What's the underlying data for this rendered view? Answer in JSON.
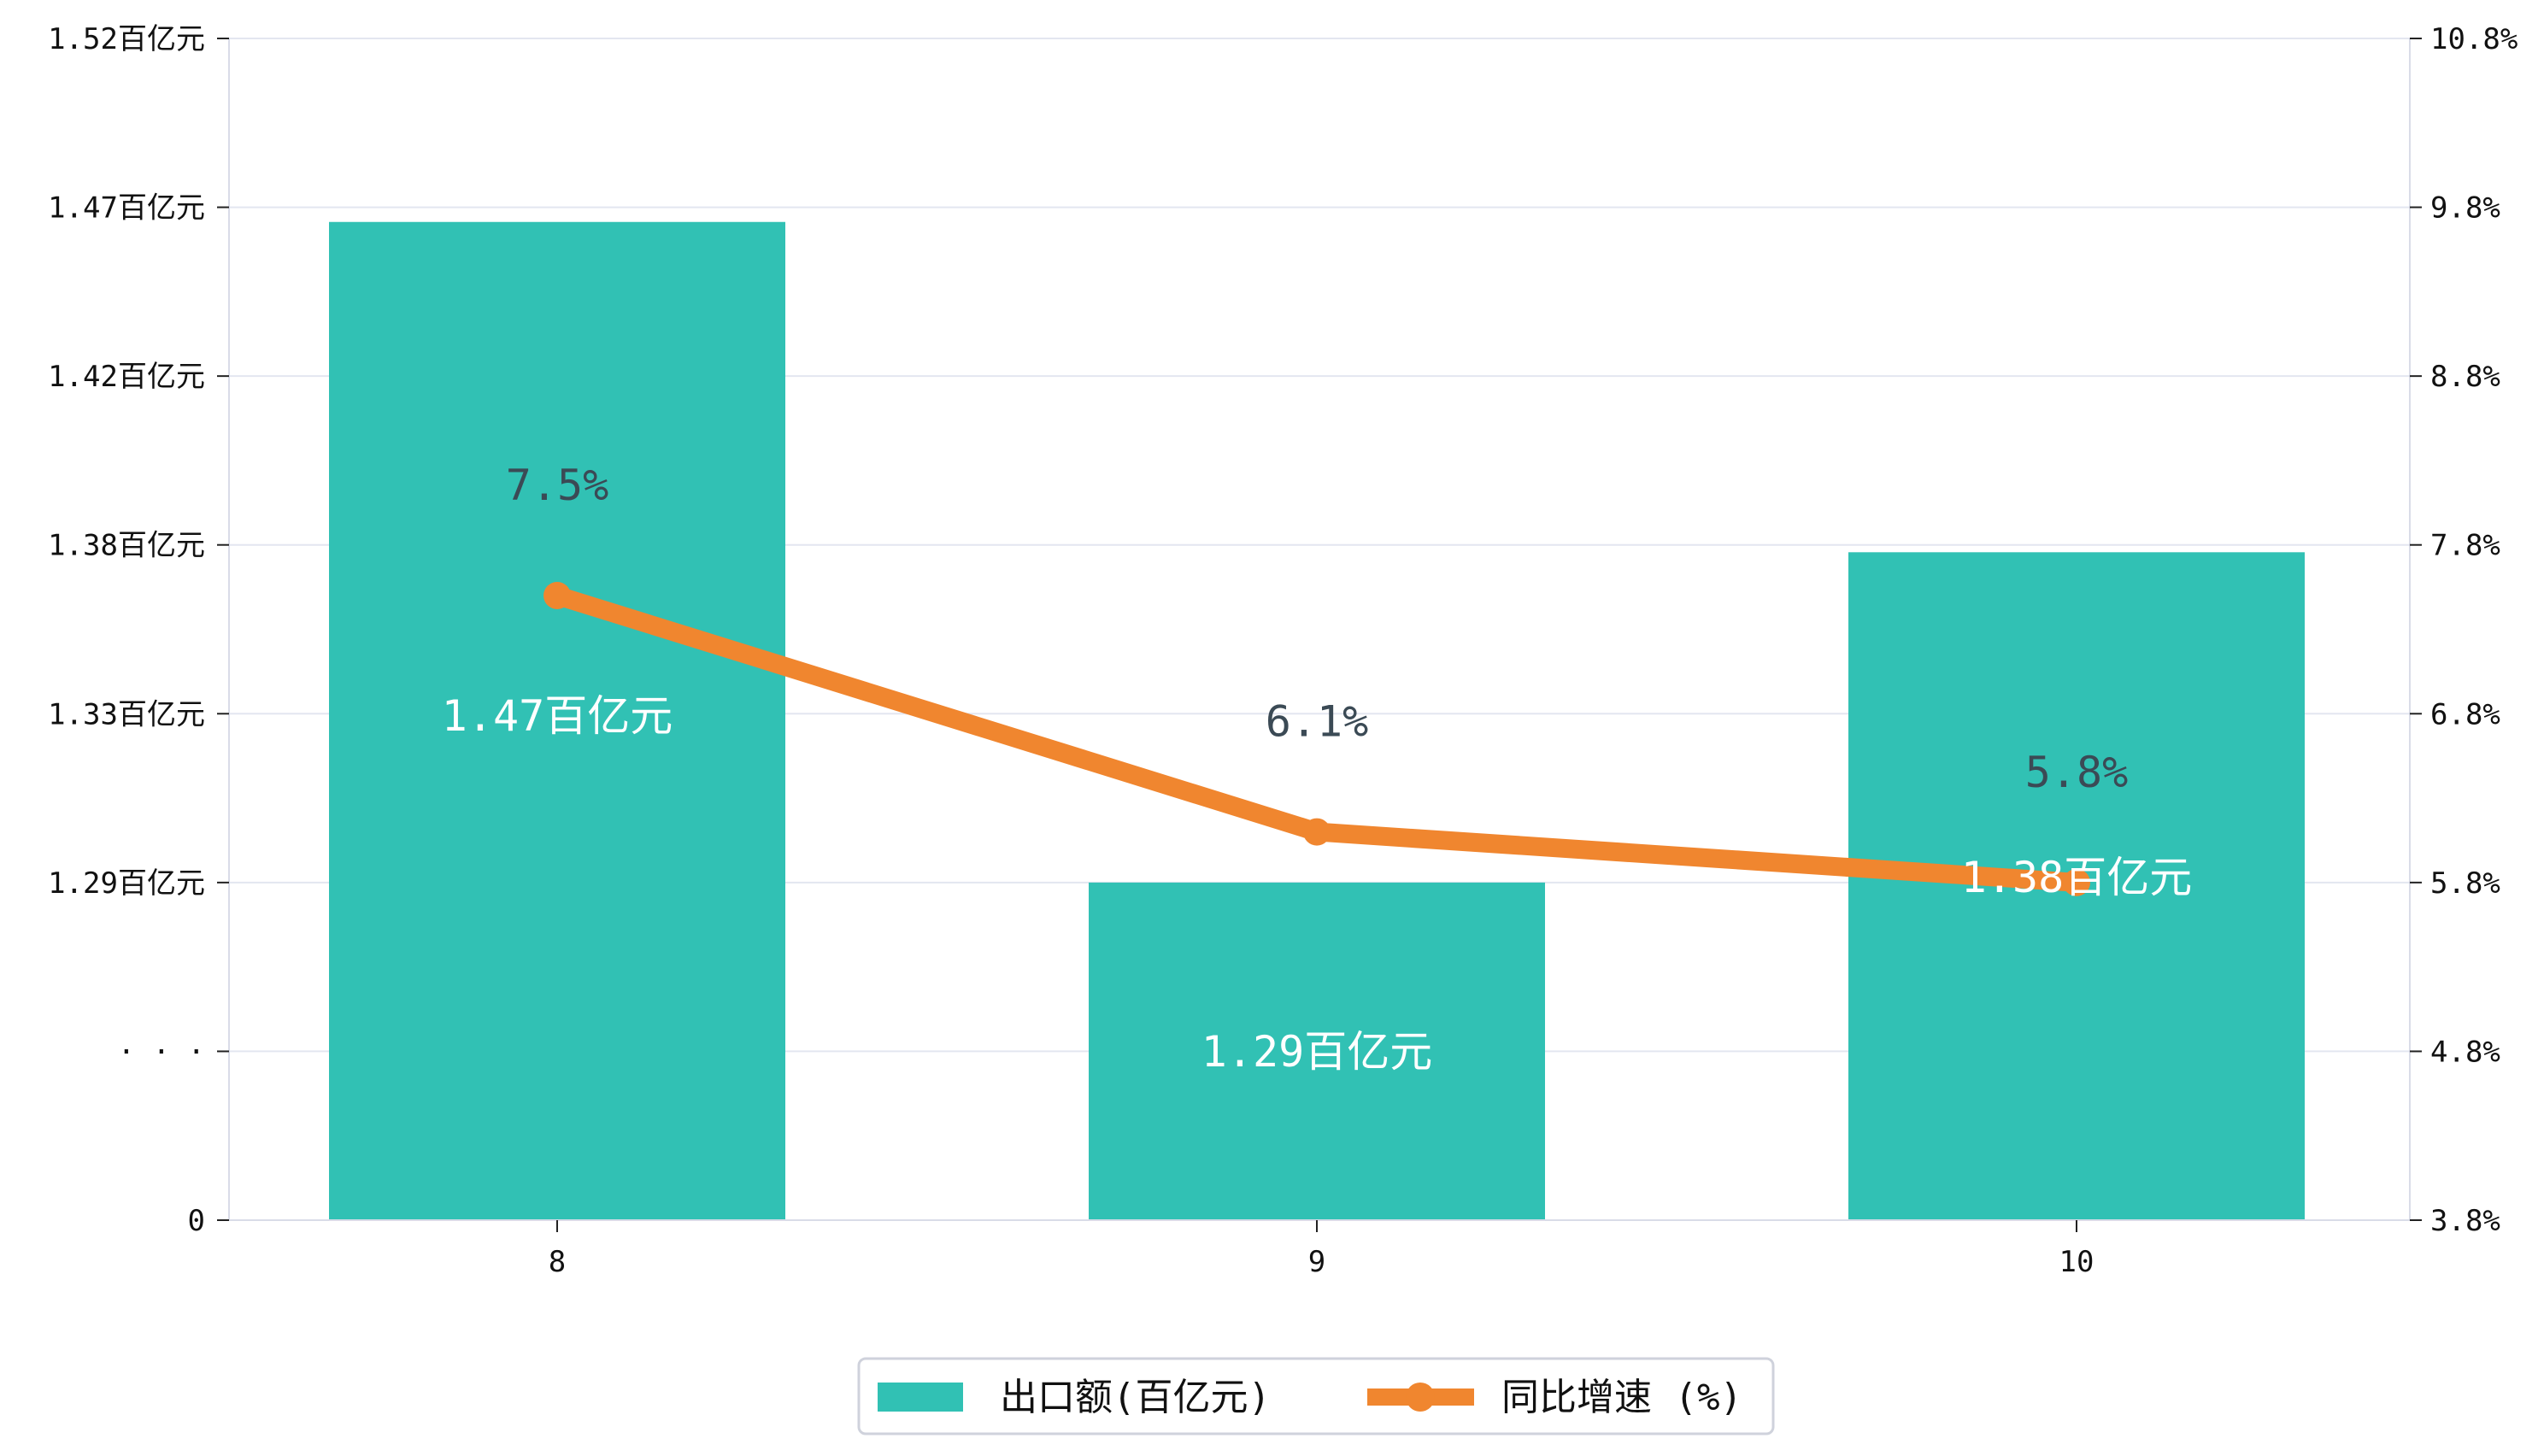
{
  "chart_data": {
    "type": "bar+line",
    "categories": [
      "8",
      "9",
      "10"
    ],
    "series": [
      {
        "name": "出口额(百亿元)",
        "kind": "bar",
        "axis": "left",
        "values": [
          1.47,
          1.29,
          1.38
        ],
        "labels": [
          "1.47百亿元",
          "1.29百亿元",
          "1.38百亿元"
        ]
      },
      {
        "name": "同比增速 (%)",
        "kind": "line",
        "axis": "right",
        "values": [
          7.5,
          6.1,
          5.8
        ],
        "labels": [
          "7.5%",
          "6.1%",
          "5.8%"
        ]
      }
    ],
    "left_axis": {
      "ticks": [
        "0",
        "· · ·",
        "1.29百亿元",
        "1.33百亿元",
        "1.38百亿元",
        "1.42百亿元",
        "1.47百亿元",
        "1.52百亿元"
      ],
      "broken": true,
      "ylim": [
        1.245,
        1.52
      ]
    },
    "right_axis": {
      "ticks": [
        "3.8%",
        "4.8%",
        "5.8%",
        "6.8%",
        "7.8%",
        "8.8%",
        "9.8%",
        "10.8%"
      ],
      "ylim": [
        3.8,
        10.8
      ]
    },
    "grid": true,
    "legend_position": "bottom-center",
    "colors": {
      "bar": "#31c1b4",
      "line": "#f0862f",
      "grid": "#e3e6f0",
      "rate_label": "#3b4a55"
    }
  }
}
